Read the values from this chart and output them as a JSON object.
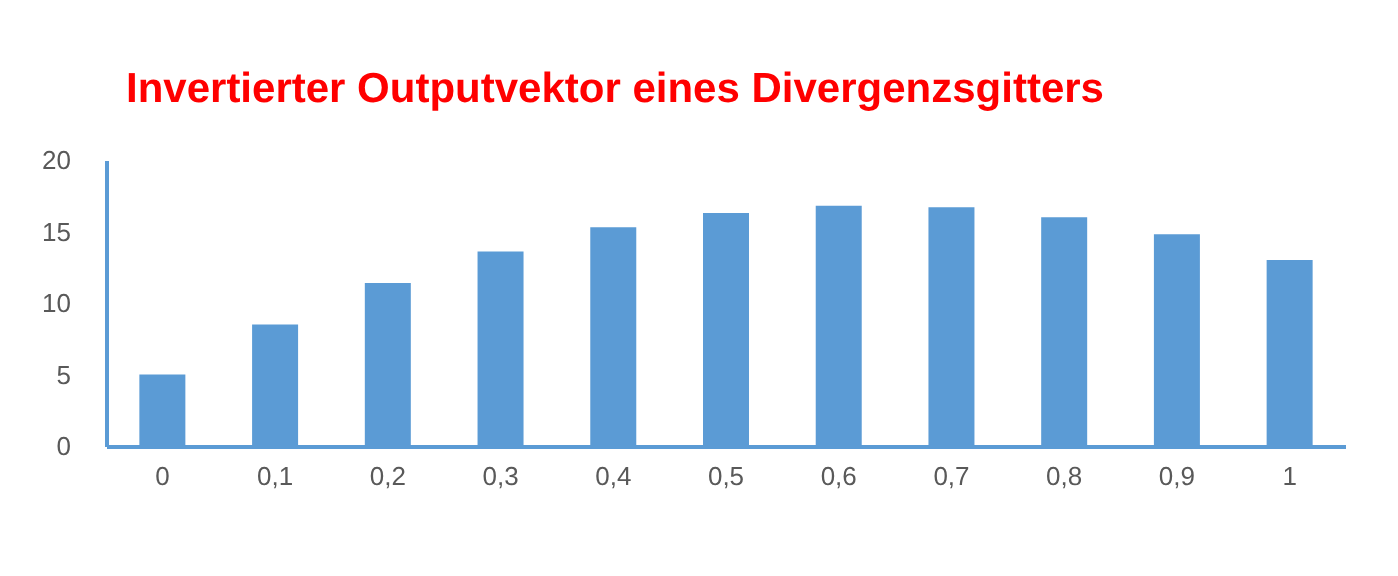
{
  "chart_data": {
    "type": "bar",
    "title": "Invertierter Outputvektor eines Divergenzsgitters",
    "categories": [
      "0",
      "0,1",
      "0,2",
      "0,3",
      "0,4",
      "0,5",
      "0,6",
      "0,7",
      "0,8",
      "0,9",
      "1"
    ],
    "values": [
      5.0,
      8.5,
      11.4,
      13.6,
      15.3,
      16.3,
      16.8,
      16.7,
      16.0,
      14.8,
      13.0
    ],
    "color": "#5b9bd5",
    "ylim": [
      0,
      20
    ],
    "yticks": [
      0,
      5,
      10,
      15,
      20
    ],
    "grid": false
  }
}
